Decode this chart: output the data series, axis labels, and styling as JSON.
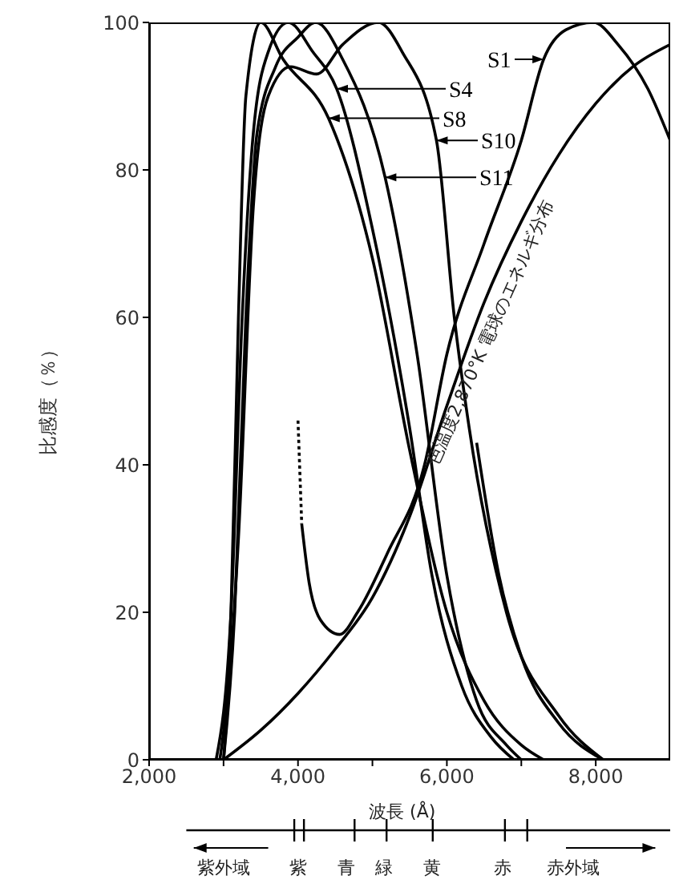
{
  "chart_data": {
    "type": "line",
    "ylabel": "比感度（％）",
    "xlabel": "波長 (Å)",
    "xlim": [
      2000,
      9000
    ],
    "xticks": [
      {
        "value": 2000,
        "label": "2,000"
      },
      {
        "value": 3000,
        "label": null
      },
      {
        "value": 4000,
        "label": "4,000"
      },
      {
        "value": 5000,
        "label": null
      },
      {
        "value": 6000,
        "label": "6,000"
      },
      {
        "value": 7000,
        "label": null
      },
      {
        "value": 8000,
        "label": "8,000"
      }
    ],
    "ylim": [
      0,
      100
    ],
    "yticks": [
      0,
      20,
      40,
      60,
      80,
      100
    ],
    "grid": false,
    "legend": "top right",
    "marker": "none",
    "line_style": "solid",
    "series": [
      {
        "name": "S1",
        "color": "#000000",
        "x": [
          4050,
          4150,
          4300,
          4560,
          4800,
          5200,
          5700,
          6000,
          6500,
          7000,
          7300,
          7600,
          7970,
          8300,
          8700,
          9000
        ],
        "values": [
          32,
          24,
          19,
          17,
          20,
          28,
          40,
          55,
          70,
          84,
          95,
          99,
          100,
          97,
          91,
          84
        ]
      },
      {
        "color": "#000000",
        "line_style": "dotted",
        "x": [
          4000,
          4050
        ],
        "values": [
          46,
          32
        ]
      },
      {
        "name": "S4",
        "color": "#000000",
        "x": [
          2900,
          3100,
          3250,
          3400,
          3600,
          3870,
          4200,
          4520,
          5000,
          5500,
          5800,
          6200,
          6600,
          6900
        ],
        "values": [
          0,
          20,
          60,
          85,
          96,
          100,
          96,
          91,
          72,
          45,
          25,
          10,
          3,
          0
        ]
      },
      {
        "name": "S8",
        "color": "#000000",
        "x": [
          2950,
          3100,
          3200,
          3300,
          3500,
          3800,
          4410,
          5000,
          5500,
          6000,
          6500,
          7000,
          7300
        ],
        "values": [
          0,
          20,
          60,
          90,
          100,
          95,
          87,
          68,
          42,
          20,
          8,
          2,
          0
        ]
      },
      {
        "name": "S10",
        "color": "#000000",
        "x": [
          3000,
          3200,
          3400,
          3600,
          3900,
          4250,
          4600,
          5080,
          5400,
          5860,
          6100,
          6300,
          6800,
          7500,
          8100
        ],
        "values": [
          0,
          30,
          75,
          90,
          94,
          93,
          97,
          100,
          96,
          84,
          60,
          45,
          20,
          6,
          0
        ]
      },
      {
        "name": "S11",
        "color": "#000000",
        "x": [
          3000,
          3150,
          3300,
          3450,
          3700,
          4000,
          4240,
          4600,
          5170,
          5600,
          6000,
          6400,
          6800,
          7000
        ],
        "values": [
          0,
          20,
          60,
          85,
          94,
          98,
          100,
          95,
          79,
          55,
          25,
          8,
          2,
          0
        ]
      },
      {
        "color": "#000000",
        "x": [
          6400,
          6700,
          7000,
          7500,
          8100
        ],
        "values": [
          43,
          25,
          14,
          5,
          0
        ]
      },
      {
        "color": "#000000",
        "x": [
          3000,
          3500,
          4000,
          4500,
          5000,
          5500,
          6000,
          6500,
          7000,
          7500,
          8000,
          8500,
          9000
        ],
        "values": [
          0,
          4,
          9,
          15,
          22,
          33,
          48,
          62,
          73,
          82,
          89,
          94,
          97
        ]
      }
    ],
    "annotations": [
      "色温度2,870°K 電球のエネルギ分布",
      "紫外域",
      "紫",
      "青",
      "緑",
      "黄",
      "赤",
      "赤外域"
    ]
  }
}
